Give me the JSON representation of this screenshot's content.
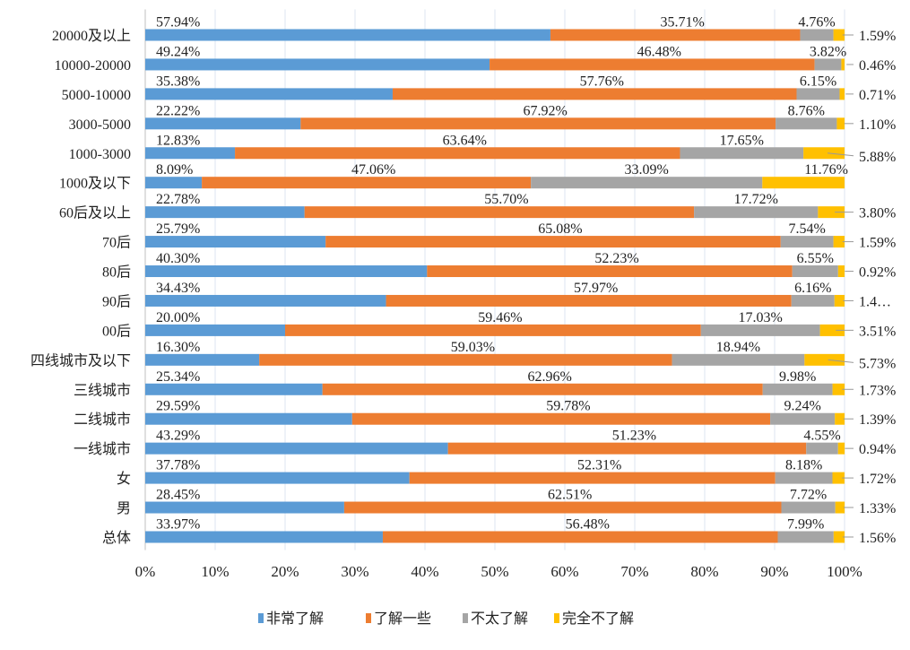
{
  "chart_data": {
    "type": "bar",
    "orientation": "horizontal",
    "stacked": "percent",
    "categories": [
      "20000及以上",
      "10000-20000",
      "5000-10000",
      "3000-5000",
      "1000-3000",
      "1000及以下",
      "60后及以上",
      "70后",
      "80后",
      "90后",
      "00后",
      "四线城市及以下",
      "三线城市",
      "二线城市",
      "一线城市",
      "女",
      "男",
      "总体"
    ],
    "series": [
      {
        "name": "非常了解",
        "color": "#5b9bd5",
        "values": [
          57.94,
          49.24,
          35.38,
          22.22,
          12.83,
          8.09,
          22.78,
          25.79,
          40.3,
          34.43,
          20.0,
          16.3,
          25.34,
          29.59,
          43.29,
          37.78,
          28.45,
          33.97
        ]
      },
      {
        "name": "了解一些",
        "color": "#ed7d31",
        "values": [
          35.71,
          46.48,
          57.76,
          67.92,
          63.64,
          47.06,
          55.7,
          65.08,
          52.23,
          57.97,
          59.46,
          59.03,
          62.96,
          59.78,
          51.23,
          52.31,
          62.51,
          56.48
        ]
      },
      {
        "name": "不太了解",
        "color": "#a5a5a5",
        "values": [
          4.76,
          3.82,
          6.15,
          8.76,
          17.65,
          33.09,
          17.72,
          7.54,
          6.55,
          6.16,
          17.03,
          18.94,
          9.98,
          9.24,
          4.55,
          8.18,
          7.72,
          7.99
        ]
      },
      {
        "name": "完全不了解",
        "color": "#ffc000",
        "values": [
          1.59,
          0.46,
          0.71,
          1.1,
          5.88,
          11.76,
          3.8,
          1.59,
          0.92,
          1.44,
          3.51,
          5.73,
          1.73,
          1.39,
          0.94,
          1.72,
          1.33,
          1.56
        ]
      }
    ],
    "data_labels": [
      [
        "57.94%",
        "35.71%",
        "4.76%",
        "1.59%"
      ],
      [
        "49.24%",
        "46.48%",
        "3.82%",
        "0.46%"
      ],
      [
        "35.38%",
        "57.76%",
        "6.15%",
        "0.71%"
      ],
      [
        "22.22%",
        "67.92%",
        "8.76%",
        "1.10%"
      ],
      [
        "12.83%",
        "63.64%",
        "17.65%",
        "5.88%"
      ],
      [
        "8.09%",
        "47.06%",
        "33.09%",
        "11.76%"
      ],
      [
        "22.78%",
        "55.70%",
        "17.72%",
        "3.80%"
      ],
      [
        "25.79%",
        "65.08%",
        "7.54%",
        "1.59%"
      ],
      [
        "40.30%",
        "52.23%",
        "6.55%",
        "0.92%"
      ],
      [
        "34.43%",
        "57.97%",
        "6.16%",
        "1.4…"
      ],
      [
        "20.00%",
        "59.46%",
        "17.03%",
        "3.51%"
      ],
      [
        "16.30%",
        "59.03%",
        "18.94%",
        "5.73%"
      ],
      [
        "25.34%",
        "62.96%",
        "9.98%",
        "1.73%"
      ],
      [
        "29.59%",
        "59.78%",
        "9.24%",
        "1.39%"
      ],
      [
        "43.29%",
        "51.23%",
        "4.55%",
        "0.94%"
      ],
      [
        "37.78%",
        "52.31%",
        "8.18%",
        "1.72%"
      ],
      [
        "28.45%",
        "62.51%",
        "7.72%",
        "1.33%"
      ],
      [
        "33.97%",
        "56.48%",
        "7.99%",
        "1.56%"
      ]
    ],
    "x_ticks": [
      "0%",
      "10%",
      "20%",
      "30%",
      "40%",
      "50%",
      "60%",
      "70%",
      "80%",
      "90%",
      "100%"
    ],
    "xlim": [
      0,
      100
    ],
    "grid": "vertical",
    "legend": "bottom",
    "title": "",
    "xlabel": "",
    "ylabel": ""
  }
}
